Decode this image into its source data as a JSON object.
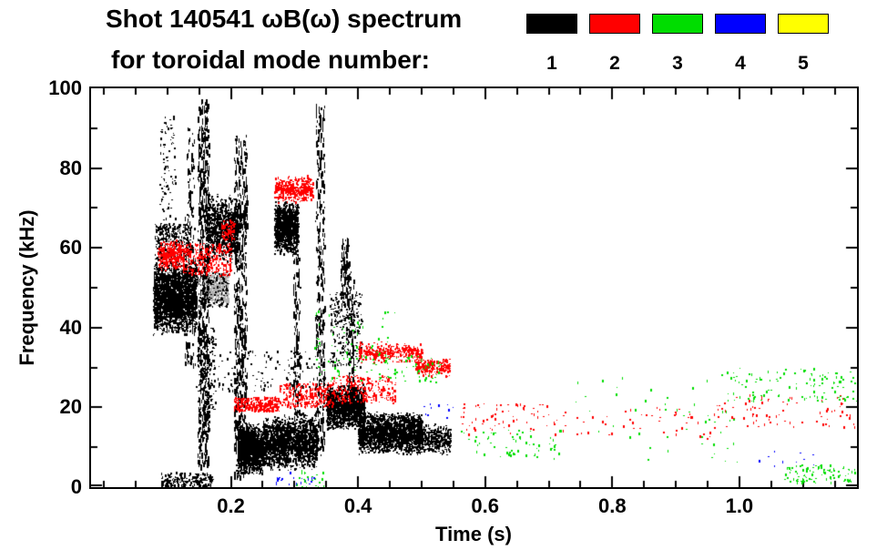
{
  "chart_data": {
    "type": "scatter",
    "title": "Shot 140541 ωB(ω) spectrum",
    "subtitle": "for toroidal mode number:",
    "xlabel": "Time (s)",
    "ylabel": "Frequency (kHz)",
    "xlim": [
      -0.02,
      1.185
    ],
    "ylim": [
      0,
      100
    ],
    "xtick_values": [
      0.2,
      0.4,
      0.6,
      0.8,
      1.0
    ],
    "xtick_labels": [
      "0.2",
      "0.4",
      "0.6",
      "0.8",
      "1.0"
    ],
    "x_minor_step": 0.05,
    "ytick_values": [
      0,
      20,
      40,
      60,
      80,
      100
    ],
    "ytick_labels": [
      "0",
      "20",
      "40",
      "60",
      "80",
      "100"
    ],
    "y_minor_step": 10,
    "grid": false,
    "legend": {
      "position": "top",
      "entries": [
        {
          "label": "1",
          "color": "#000000"
        },
        {
          "label": "2",
          "color": "#ff0000"
        },
        {
          "label": "3",
          "color": "#00dd00"
        },
        {
          "label": "4",
          "color": "#0000ff"
        },
        {
          "label": "5",
          "color": "#ffff00"
        }
      ]
    },
    "clusters": [
      {
        "m": 1,
        "c": "#b3b3b3",
        "t": [
          0.155,
          0.195
        ],
        "f": [
          45,
          54
        ],
        "n": 450,
        "s": "blob"
      },
      {
        "m": 1,
        "t": [
          0.155,
          0.195
        ],
        "f": [
          45,
          54
        ],
        "n": 110,
        "s": "uniform"
      },
      {
        "m": 1,
        "t": [
          0.078,
          0.145
        ],
        "f": [
          38,
          57
        ],
        "n": 2600,
        "s": "blob"
      },
      {
        "m": 1,
        "t": [
          0.08,
          0.135
        ],
        "f": [
          57,
          66
        ],
        "n": 300,
        "s": "uniform"
      },
      {
        "m": 1,
        "t": [
          0.088,
          0.112
        ],
        "f": [
          66,
          93
        ],
        "n": 90,
        "s": "uniform"
      },
      {
        "m": 1,
        "t": [
          0.128,
          0.142
        ],
        "f": [
          30,
          90
        ],
        "n": 150,
        "s": "streak"
      },
      {
        "m": 1,
        "t": [
          0.148,
          0.165
        ],
        "f": [
          5,
          97
        ],
        "n": 650,
        "s": "streak"
      },
      {
        "m": 1,
        "t": [
          0.16,
          0.21
        ],
        "f": [
          56,
          74
        ],
        "n": 900,
        "s": "blob"
      },
      {
        "m": 1,
        "t": [
          0.155,
          0.175
        ],
        "f": [
          18,
          40
        ],
        "n": 120,
        "s": "uniform"
      },
      {
        "m": 1,
        "t": [
          0.09,
          0.17
        ],
        "f": [
          0,
          3.5
        ],
        "n": 180,
        "s": "uniform"
      },
      {
        "m": 1,
        "t": [
          0.205,
          0.225
        ],
        "f": [
          2,
          88
        ],
        "n": 550,
        "s": "streak"
      },
      {
        "m": 1,
        "t": [
          0.21,
          0.25
        ],
        "f": [
          3,
          16
        ],
        "n": 1400,
        "s": "blob"
      },
      {
        "m": 1,
        "t": [
          0.25,
          0.29
        ],
        "f": [
          4,
          18
        ],
        "n": 1000,
        "s": "blob"
      },
      {
        "m": 1,
        "t": [
          0.29,
          0.335
        ],
        "f": [
          4,
          19
        ],
        "n": 900,
        "s": "blob"
      },
      {
        "m": 1,
        "t": [
          0.268,
          0.305
        ],
        "f": [
          58,
          72
        ],
        "n": 1100,
        "s": "blob"
      },
      {
        "m": 1,
        "t": [
          0.298,
          0.308
        ],
        "f": [
          18,
          58
        ],
        "n": 120,
        "s": "streak"
      },
      {
        "m": 1,
        "t": [
          0.333,
          0.347
        ],
        "f": [
          8,
          96
        ],
        "n": 350,
        "s": "streak"
      },
      {
        "m": 1,
        "t": [
          0.14,
          0.34
        ],
        "f": [
          24,
          34
        ],
        "n": 150,
        "s": "uniform"
      },
      {
        "m": 1,
        "t": [
          0.35,
          0.41
        ],
        "f": [
          14,
          26
        ],
        "n": 1500,
        "s": "blob"
      },
      {
        "m": 1,
        "t": [
          0.355,
          0.405
        ],
        "f": [
          30,
          49
        ],
        "n": 260,
        "s": "uniform"
      },
      {
        "m": 1,
        "t": [
          0.373,
          0.385
        ],
        "f": [
          45,
          62
        ],
        "n": 110,
        "s": "streak"
      },
      {
        "m": 1,
        "t": [
          0.385,
          0.393
        ],
        "f": [
          20,
          55
        ],
        "n": 80,
        "s": "streak"
      },
      {
        "m": 1,
        "t": [
          0.4,
          0.5
        ],
        "f": [
          8,
          19
        ],
        "n": 2000,
        "s": "blob"
      },
      {
        "m": 1,
        "t": [
          0.49,
          0.545
        ],
        "f": [
          8,
          16
        ],
        "n": 420,
        "s": "blob"
      },
      {
        "m": 2,
        "t": [
          0.085,
          0.125
        ],
        "f": [
          54,
          62
        ],
        "n": 320,
        "s": "blob"
      },
      {
        "m": 2,
        "t": [
          0.125,
          0.2
        ],
        "f": [
          53,
          61
        ],
        "n": 300,
        "s": "uniform"
      },
      {
        "m": 2,
        "t": [
          0.185,
          0.205
        ],
        "f": [
          62,
          67
        ],
        "n": 90,
        "s": "uniform"
      },
      {
        "m": 2,
        "t": [
          0.268,
          0.328
        ],
        "f": [
          71,
          78
        ],
        "n": 380,
        "s": "blob"
      },
      {
        "m": 2,
        "t": [
          0.205,
          0.275
        ],
        "f": [
          19,
          22.5
        ],
        "n": 300,
        "s": "uniform"
      },
      {
        "m": 2,
        "t": [
          0.275,
          0.36
        ],
        "f": [
          20,
          26
        ],
        "n": 260,
        "s": "uniform"
      },
      {
        "m": 2,
        "t": [
          0.36,
          0.46
        ],
        "f": [
          21,
          28
        ],
        "n": 240,
        "s": "uniform"
      },
      {
        "m": 2,
        "t": [
          0.4,
          0.5
        ],
        "f": [
          31,
          36.5
        ],
        "n": 360,
        "s": "blob"
      },
      {
        "m": 2,
        "t": [
          0.49,
          0.545
        ],
        "f": [
          27.5,
          32.5
        ],
        "n": 240,
        "s": "blob"
      },
      {
        "m": 2,
        "t": [
          0.56,
          0.72
        ],
        "f": [
          13,
          21
        ],
        "n": 70,
        "s": "uniform"
      },
      {
        "m": 2,
        "t": [
          0.72,
          0.96
        ],
        "f": [
          12,
          20
        ],
        "n": 50,
        "s": "uniform"
      },
      {
        "m": 2,
        "t": [
          0.96,
          1.185
        ],
        "f": [
          15,
          23
        ],
        "n": 80,
        "s": "uniform"
      },
      {
        "m": 3,
        "t": [
          0.33,
          0.46
        ],
        "f": [
          26,
          44
        ],
        "n": 80,
        "s": "uniform"
      },
      {
        "m": 3,
        "t": [
          0.43,
          0.53
        ],
        "f": [
          26,
          33
        ],
        "n": 60,
        "s": "uniform"
      },
      {
        "m": 3,
        "t": [
          0.56,
          0.73
        ],
        "f": [
          7,
          15
        ],
        "n": 60,
        "s": "uniform"
      },
      {
        "m": 3,
        "t": [
          0.73,
          1.0
        ],
        "f": [
          6,
          28
        ],
        "n": 50,
        "s": "uniform"
      },
      {
        "m": 3,
        "t": [
          0.98,
          1.185
        ],
        "f": [
          21,
          30
        ],
        "n": 110,
        "s": "uniform"
      },
      {
        "m": 3,
        "t": [
          1.07,
          1.185
        ],
        "f": [
          1,
          5.5
        ],
        "n": 90,
        "s": "uniform"
      },
      {
        "m": 3,
        "t": [
          0.3,
          0.345
        ],
        "f": [
          0,
          4
        ],
        "n": 25,
        "s": "uniform"
      },
      {
        "m": 4,
        "t": [
          0.27,
          0.33
        ],
        "f": [
          0.5,
          3.5
        ],
        "n": 22,
        "s": "uniform"
      },
      {
        "m": 4,
        "t": [
          0.5,
          0.56
        ],
        "f": [
          17,
          21
        ],
        "n": 10,
        "s": "uniform"
      },
      {
        "m": 4,
        "t": [
          1.03,
          1.12
        ],
        "f": [
          5,
          9
        ],
        "n": 10,
        "s": "uniform"
      }
    ]
  }
}
